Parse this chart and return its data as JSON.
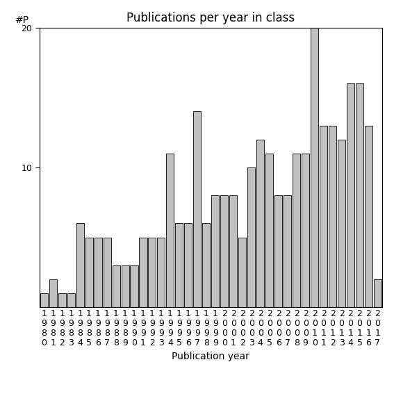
{
  "title": "Publications per year in class",
  "xlabel": "Publication year",
  "ylabel": "#P",
  "bar_color": "#c0c0c0",
  "bar_edgecolor": "#000000",
  "years": [
    1980,
    1981,
    1982,
    1983,
    1984,
    1985,
    1986,
    1987,
    1988,
    1989,
    1990,
    1991,
    1992,
    1993,
    1994,
    1995,
    1996,
    1997,
    1998,
    1999,
    2000,
    2001,
    2002,
    2003,
    2004,
    2005,
    2006,
    2007,
    2008,
    2009,
    2010,
    2011,
    2012,
    2013,
    2014,
    2015,
    2016,
    2017
  ],
  "values": [
    1,
    2,
    1,
    1,
    6,
    5,
    5,
    5,
    3,
    3,
    3,
    5,
    5,
    5,
    11,
    6,
    6,
    14,
    6,
    8,
    8,
    8,
    5,
    10,
    12,
    11,
    8,
    8,
    11,
    11,
    20,
    13,
    13,
    12,
    16,
    16,
    13,
    2
  ],
  "ylim": [
    0,
    20
  ],
  "yticks": [
    10,
    20
  ],
  "background_color": "#ffffff",
  "title_fontsize": 12,
  "axis_label_fontsize": 10,
  "tick_label_fontsize": 9,
  "ylabel_fontsize": 10
}
